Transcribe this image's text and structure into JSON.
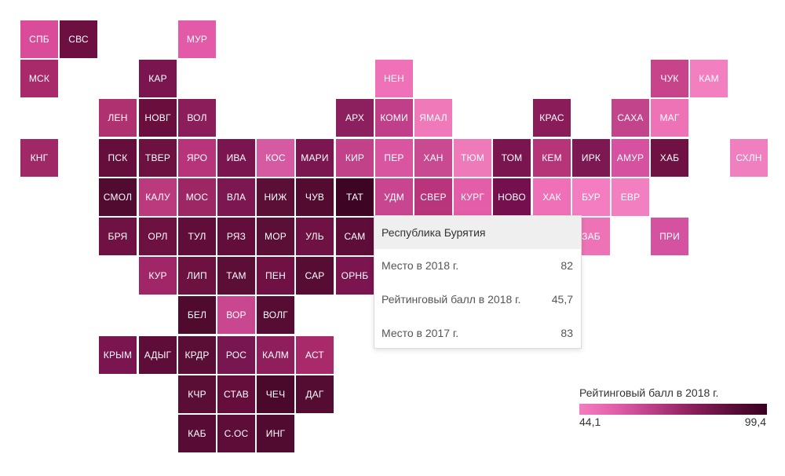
{
  "tooltip": {
    "title": "Республика Бурятия",
    "rows": [
      {
        "label": "Место в 2018 г.",
        "value": "82"
      },
      {
        "label": "Рейтинговый балл в 2018 г.",
        "value": "45,7"
      },
      {
        "label": "Место в 2017 г.",
        "value": "83"
      }
    ]
  },
  "legend": {
    "title": "Рейтинговый балл в 2018 г.",
    "min_label": "44,1",
    "max_label": "99,4",
    "gradient_colors": [
      "#f47cc0",
      "#e15da8",
      "#b83d84",
      "#8c1f5d",
      "#5c0f3a",
      "#3a0020"
    ]
  },
  "active_region": "БУР",
  "regions": [
    {
      "code": "СПБ",
      "color": "#d94c9a"
    },
    {
      "code": "СВС",
      "color": "#6e0f42"
    },
    {
      "code": "МУР",
      "color": "#e35ba8"
    },
    {
      "code": "МСК",
      "color": "#a82a6b"
    },
    {
      "code": "КАР",
      "color": "#7a1550"
    },
    {
      "code": "НЕН",
      "color": "#ef72b8"
    },
    {
      "code": "ЧУК",
      "color": "#c7448a"
    },
    {
      "code": "КАМ",
      "color": "#f27fc0"
    },
    {
      "code": "ЛЕН",
      "color": "#b0316f"
    },
    {
      "code": "НОВГ",
      "color": "#6a0f3d"
    },
    {
      "code": "ВОЛ",
      "color": "#8b1d5a"
    },
    {
      "code": "АРХ",
      "color": "#8c1f5d"
    },
    {
      "code": "КОМИ",
      "color": "#c13f88"
    },
    {
      "code": "ЯМАЛ",
      "color": "#ef79b9"
    },
    {
      "code": "КРАС",
      "color": "#8a1c5a"
    },
    {
      "code": "САХА",
      "color": "#c2448a"
    },
    {
      "code": "МАГ",
      "color": "#ee72b6"
    },
    {
      "code": "КНГ",
      "color": "#a02866"
    },
    {
      "code": "ПСК",
      "color": "#650e3b"
    },
    {
      "code": "ТВЕР",
      "color": "#6d1140"
    },
    {
      "code": "ЯРО",
      "color": "#b8347a"
    },
    {
      "code": "ИВА",
      "color": "#7a1550"
    },
    {
      "code": "КОС",
      "color": "#d65aa2"
    },
    {
      "code": "МАРИ",
      "color": "#7b1651"
    },
    {
      "code": "КИР",
      "color": "#c2428a"
    },
    {
      "code": "ПЕР",
      "color": "#d955a0"
    },
    {
      "code": "ХАН",
      "color": "#ca4a92"
    },
    {
      "code": "ТЮМ",
      "color": "#ee7ab9"
    },
    {
      "code": "ТОМ",
      "color": "#7a1550"
    },
    {
      "code": "КЕМ",
      "color": "#b63478"
    },
    {
      "code": "ИРК",
      "color": "#7e1853"
    },
    {
      "code": "АМУР",
      "color": "#d651a0"
    },
    {
      "code": "ХАБ",
      "color": "#6f1243"
    },
    {
      "code": "СХЛН",
      "color": "#f07fbf"
    },
    {
      "code": "СМОЛ",
      "color": "#520b30"
    },
    {
      "code": "КАЛУ",
      "color": "#bb3a7e"
    },
    {
      "code": "МОС",
      "color": "#9d2664"
    },
    {
      "code": "ВЛА",
      "color": "#7c1752"
    },
    {
      "code": "НИЖ",
      "color": "#5c0f36"
    },
    {
      "code": "ЧУВ",
      "color": "#530b30"
    },
    {
      "code": "ТАТ",
      "color": "#3d0523"
    },
    {
      "code": "УДМ",
      "color": "#c84690"
    },
    {
      "code": "СВЕР",
      "color": "#b8347b"
    },
    {
      "code": "КУРГ",
      "color": "#e35da8"
    },
    {
      "code": "НОВО",
      "color": "#760f4d"
    },
    {
      "code": "ХАК",
      "color": "#f070b7"
    },
    {
      "code": "БУР",
      "color": "#f47cc0"
    },
    {
      "code": "ЕВР",
      "color": "#f27fc0"
    },
    {
      "code": "БРЯ",
      "color": "#6f1243"
    },
    {
      "code": "ОРЛ",
      "color": "#6d1140"
    },
    {
      "code": "ТУЛ",
      "color": "#610d39"
    },
    {
      "code": "РЯЗ",
      "color": "#630e3a"
    },
    {
      "code": "МОР",
      "color": "#5c0f36"
    },
    {
      "code": "УЛЬ",
      "color": "#6f1243"
    },
    {
      "code": "САМ",
      "color": "#5e0c38"
    },
    {
      "code": "ЗАБ",
      "color": "#ee72b6"
    },
    {
      "code": "ПРИ",
      "color": "#d552a0"
    },
    {
      "code": "КУР",
      "color": "#a12667"
    },
    {
      "code": "ЛИП",
      "color": "#6d1140"
    },
    {
      "code": "ТАМ",
      "color": "#5c0f36"
    },
    {
      "code": "ПЕН",
      "color": "#6f1243"
    },
    {
      "code": "САР",
      "color": "#570c34"
    },
    {
      "code": "ОРНБ",
      "color": "#7a1550"
    },
    {
      "code": "БЕЛ",
      "color": "#4f0a2e"
    },
    {
      "code": "ВОР",
      "color": "#c8478f"
    },
    {
      "code": "ВОЛГ",
      "color": "#570c34"
    },
    {
      "code": "КРЫМ",
      "color": "#7a1550"
    },
    {
      "code": "АДЫГ",
      "color": "#5e0c38"
    },
    {
      "code": "КРДР",
      "color": "#5a0d35"
    },
    {
      "code": "РОС",
      "color": "#771651"
    },
    {
      "code": "КАЛМ",
      "color": "#8f1e5d"
    },
    {
      "code": "АСТ",
      "color": "#a82a6b"
    },
    {
      "code": "КЧР",
      "color": "#5a0d35"
    },
    {
      "code": "СТАВ",
      "color": "#650e3b"
    },
    {
      "code": "ЧЕЧ",
      "color": "#4a082b"
    },
    {
      "code": "ДАГ",
      "color": "#550c32"
    },
    {
      "code": "КАБ",
      "color": "#580c35"
    },
    {
      "code": "С.ОС",
      "color": "#5e0c38"
    },
    {
      "code": "ИНГ",
      "color": "#520b30"
    }
  ]
}
